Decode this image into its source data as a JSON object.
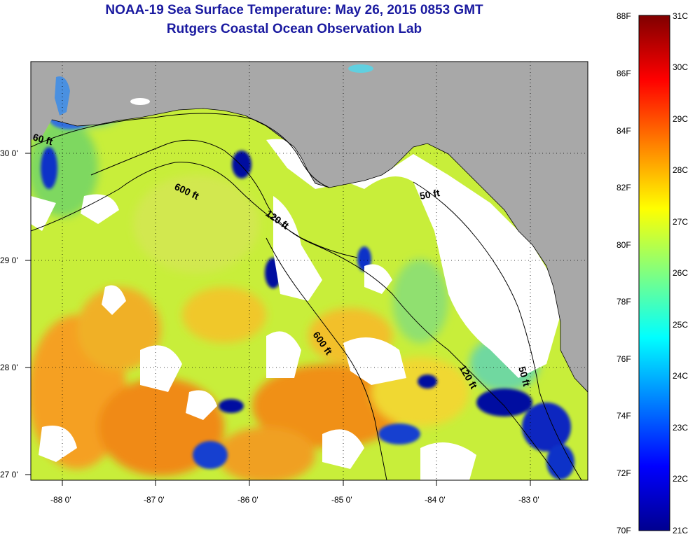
{
  "title_line1": "NOAA-19 Sea Surface Temperature:  May 26, 2015 0853 GMT",
  "title_line2": "Rutgers Coastal Ocean Observation Lab",
  "map": {
    "lat_labels": [
      "30 0'",
      "29 0'",
      "28 0'",
      "27 0'"
    ],
    "lon_labels": [
      "-88 0'",
      "-87 0'",
      "-86 0'",
      "-85 0'",
      "-84 0'",
      "-83 0'"
    ],
    "contours": [
      {
        "label": "60 ft",
        "depth": "60 ft"
      },
      {
        "label": "600 ft",
        "depth": "600 ft"
      },
      {
        "label": "120 ft",
        "depth": "120 ft"
      },
      {
        "label": "50 ft",
        "depth": "50 ft"
      },
      {
        "label": "600 ft",
        "depth": "600 ft"
      },
      {
        "label": "120 ft",
        "depth": "120 ft"
      },
      {
        "label": "50 ft",
        "depth": "50 ft"
      }
    ],
    "colors": {
      "land": "#a8a8a8",
      "cloud": "#ffffff",
      "grid": "#000000"
    }
  },
  "colorbar": {
    "f_labels": [
      "88F",
      "86F",
      "84F",
      "82F",
      "80F",
      "78F",
      "76F",
      "74F",
      "72F",
      "70F"
    ],
    "c_labels": [
      "31C",
      "30C",
      "29C",
      "28C",
      "27C",
      "26C",
      "25C",
      "24C",
      "23C",
      "22C",
      "21C"
    ],
    "colors": [
      "#00008f",
      "#0000ff",
      "#0080ff",
      "#00ffff",
      "#80ff80",
      "#ffff00",
      "#ff8000",
      "#ff0000",
      "#800000"
    ]
  }
}
